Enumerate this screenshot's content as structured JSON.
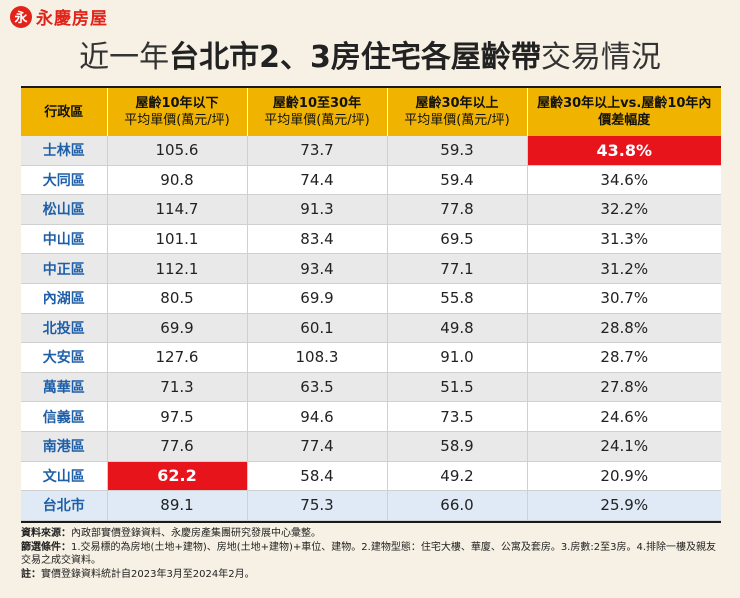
{
  "brand": {
    "mark": "永",
    "name": "永慶房屋"
  },
  "title": {
    "light_prefix": "近一年",
    "bold": "台北市2、3房住宅各屋齡帶",
    "light_suffix": "交易情況"
  },
  "chart_data": {
    "type": "table",
    "title": "近一年台北市2、3房住宅各屋齡帶交易情況",
    "columns": [
      {
        "line1": "行政區",
        "line2": ""
      },
      {
        "line1": "屋齡10年以下",
        "line2": "平均單價(萬元/坪)"
      },
      {
        "line1": "屋齡10至30年",
        "line2": "平均單價(萬元/坪)"
      },
      {
        "line1": "屋齡30年以上",
        "line2": "平均單價(萬元/坪)"
      },
      {
        "line1": "屋齡30年以上vs.屋齡10年內",
        "line2": "價差幅度"
      }
    ],
    "rows": [
      {
        "district": "士林區",
        "under10": "105.6",
        "y10to30": "73.7",
        "over30": "59.3",
        "gap": "43.8%"
      },
      {
        "district": "大同區",
        "under10": "90.8",
        "y10to30": "74.4",
        "over30": "59.4",
        "gap": "34.6%"
      },
      {
        "district": "松山區",
        "under10": "114.7",
        "y10to30": "91.3",
        "over30": "77.8",
        "gap": "32.2%"
      },
      {
        "district": "中山區",
        "under10": "101.1",
        "y10to30": "83.4",
        "over30": "69.5",
        "gap": "31.3%"
      },
      {
        "district": "中正區",
        "under10": "112.1",
        "y10to30": "93.4",
        "over30": "77.1",
        "gap": "31.2%"
      },
      {
        "district": "內湖區",
        "under10": "80.5",
        "y10to30": "69.9",
        "over30": "55.8",
        "gap": "30.7%"
      },
      {
        "district": "北投區",
        "under10": "69.9",
        "y10to30": "60.1",
        "over30": "49.8",
        "gap": "28.8%"
      },
      {
        "district": "大安區",
        "under10": "127.6",
        "y10to30": "108.3",
        "over30": "91.0",
        "gap": "28.7%"
      },
      {
        "district": "萬華區",
        "under10": "71.3",
        "y10to30": "63.5",
        "over30": "51.5",
        "gap": "27.8%"
      },
      {
        "district": "信義區",
        "under10": "97.5",
        "y10to30": "94.6",
        "over30": "73.5",
        "gap": "24.6%"
      },
      {
        "district": "南港區",
        "under10": "77.6",
        "y10to30": "77.4",
        "over30": "58.9",
        "gap": "24.1%"
      },
      {
        "district": "文山區",
        "under10": "62.2",
        "y10to30": "58.4",
        "over30": "49.2",
        "gap": "20.9%"
      },
      {
        "district": "台北市",
        "under10": "89.1",
        "y10to30": "75.3",
        "over30": "66.0",
        "gap": "25.9%"
      }
    ],
    "highlights": [
      {
        "district": "士林區",
        "field": "gap"
      },
      {
        "district": "文山區",
        "field": "under10"
      }
    ]
  },
  "notes": {
    "source_label": "資料來源：",
    "source_text": "內政部實價登錄資料、永慶房產集團研究發展中心彙整。",
    "filter_label": "篩選條件：",
    "filter_text": "1.交易標的為房地(土地+建物)、房地(土地+建物)+車位、建物。2.建物型態：住宅大樓、華廈、公寓及套房。3.房數:2至3房。4.排除一樓及親友交易之成交資料。",
    "note_label": "註：",
    "note_text": "實價登錄資料統計自2023年3月至2024年2月。"
  },
  "colors": {
    "header": "#f0b400",
    "highlight": "#e8141c",
    "district": "#1f5fa8",
    "brand": "#e2231a"
  }
}
